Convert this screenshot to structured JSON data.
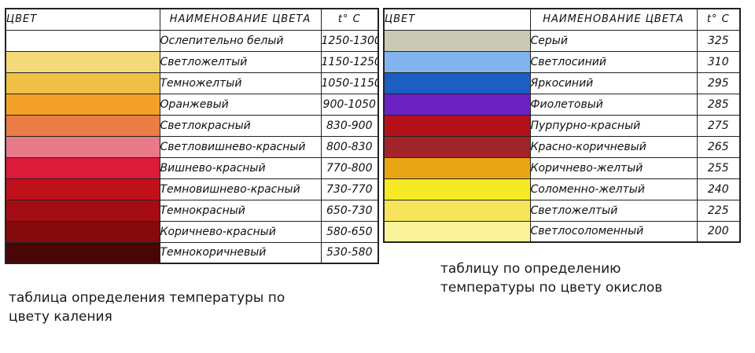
{
  "left_table": {
    "header": {
      "color": "ЦВЕТ",
      "name": "НАИМЕНОВАНИЕ ЦВЕТА",
      "temp": "t° C"
    },
    "rows": [
      {
        "swatch": "#ffffff",
        "name": "Ослепительно белый",
        "temp": "1250-1300"
      },
      {
        "swatch": "#f3d97a",
        "name": "Светложелтый",
        "temp": "1150-1250"
      },
      {
        "swatch": "#f0bf46",
        "name": "Темножелтый",
        "temp": "1050-1150"
      },
      {
        "swatch": "#f4a12a",
        "name": "Оранжевый",
        "temp": "900-1050"
      },
      {
        "swatch": "#ec7c45",
        "name": "Светлокрасный",
        "temp": "830-900"
      },
      {
        "swatch": "#e97a8a",
        "name": "Светловишнево-красный",
        "temp": "800-830"
      },
      {
        "swatch": "#dc1a3a",
        "name": "Вишнево-красный",
        "temp": "770-800"
      },
      {
        "swatch": "#c0101a",
        "name": "Темновишнево-красный",
        "temp": "730-770"
      },
      {
        "swatch": "#a50d14",
        "name": "Темнокрасный",
        "temp": "650-730"
      },
      {
        "swatch": "#850a0e",
        "name": "Коричнево-красный",
        "temp": "580-650"
      },
      {
        "swatch": "#4a0606",
        "name": "Темнокоричневый",
        "temp": "530-580"
      }
    ]
  },
  "right_table": {
    "header": {
      "color": "ЦВЕТ",
      "name": "НАИМЕНОВАНИЕ ЦВЕТА",
      "temp": "t° C"
    },
    "rows": [
      {
        "swatch": "#c9c9b6",
        "name": "Серый",
        "temp": "325"
      },
      {
        "swatch": "#82b4f0",
        "name": "Светлосиний",
        "temp": "310"
      },
      {
        "swatch": "#1c5ec2",
        "name": "Яркосиний",
        "temp": "295"
      },
      {
        "swatch": "#6a22c2",
        "name": "Фиолетовый",
        "temp": "285"
      },
      {
        "swatch": "#b5101a",
        "name": "Пурпурно-красный",
        "temp": "275"
      },
      {
        "swatch": "#a32428",
        "name": "Красно-коричневый",
        "temp": "265"
      },
      {
        "swatch": "#eaa514",
        "name": "Коричнево-желтый",
        "temp": "255"
      },
      {
        "swatch": "#f6ea26",
        "name": "Соломенно-желтый",
        "temp": "240"
      },
      {
        "swatch": "#f6e45a",
        "name": "Светложелтый",
        "temp": "225"
      },
      {
        "swatch": "#fbf39a",
        "name": "Светлосоломенный",
        "temp": "200"
      }
    ]
  },
  "captions": {
    "left": [
      "таблица определения температуры по",
      "цвету каления"
    ],
    "right": [
      "таблицу по определению",
      "температуры по цвету окислов"
    ]
  }
}
